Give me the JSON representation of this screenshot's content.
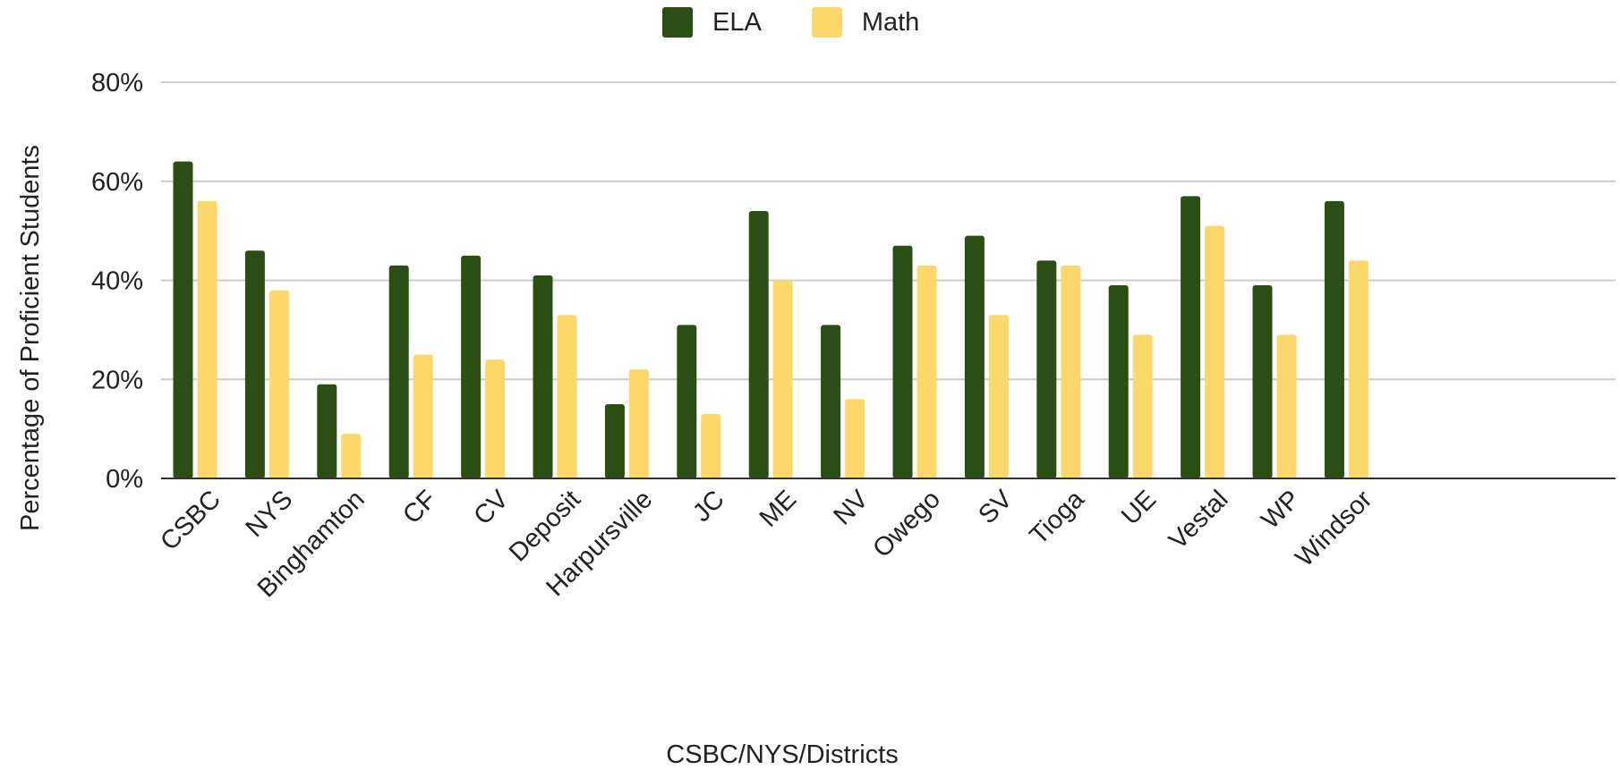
{
  "colors": {
    "ela": "#2b4e14",
    "math": "#fdd76a",
    "grid": "#cccccc",
    "axis": "#333333"
  },
  "legend": {
    "items": [
      "ELA",
      "Math"
    ]
  },
  "chart_data": {
    "type": "bar",
    "title": "",
    "xlabel": "CSBC/NYS/Districts",
    "ylabel": "Percentage of Proficient Students",
    "ylim": [
      0,
      80
    ],
    "yticks": [
      "0%",
      "20%",
      "40%",
      "60%",
      "80%"
    ],
    "grid": true,
    "legend_position": "top-center",
    "categories": [
      "CSBC",
      "NYS",
      "Binghamton",
      "CF",
      "CV",
      "Deposit",
      "Harpursville",
      "JC",
      "ME",
      "NV",
      "Owego",
      "SV",
      "Tioga",
      "UE",
      "Vestal",
      "WP",
      "Windsor"
    ],
    "series": [
      {
        "name": "ELA",
        "values": [
          64,
          46,
          19,
          43,
          45,
          41,
          15,
          31,
          54,
          31,
          47,
          49,
          44,
          39,
          57,
          39,
          56
        ]
      },
      {
        "name": "Math",
        "values": [
          56,
          38,
          9,
          25,
          24,
          33,
          22,
          13,
          40,
          16,
          43,
          33,
          43,
          29,
          51,
          29,
          44
        ]
      }
    ]
  }
}
